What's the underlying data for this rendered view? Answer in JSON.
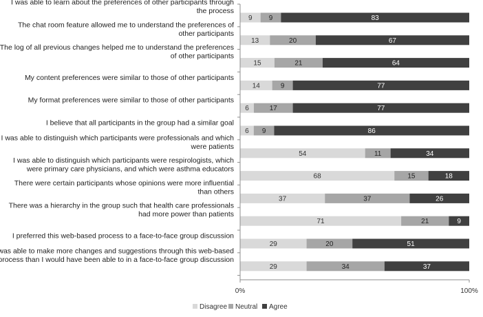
{
  "colors": {
    "disagree": "#d9d9d9",
    "neutral": "#a6a6a6",
    "agree": "#404040",
    "gridline": "#d0d0d0",
    "axis": "#8c8c8c"
  },
  "chart_data": {
    "type": "bar",
    "orientation": "horizontal",
    "stacked": true,
    "categories": [
      [
        "I was able to learn about the preferences of other participants through",
        "the process"
      ],
      [
        "The chat room feature allowed me to understand the preferences of",
        "other participants"
      ],
      [
        "The log of all previous changes helped me to understand the preferences",
        "of other participants"
      ],
      [
        "My content preferences were similar to those of other participants"
      ],
      [
        "My format preferences were similar to those of other participants"
      ],
      [
        "I believe that all participants in the group had a similar goal"
      ],
      [
        "I was able to distinguish which participants were professionals and which",
        "were patients"
      ],
      [
        "I was able to distinguish which participants were respirologists, which",
        "were primary care physicians, and which were asthma educators"
      ],
      [
        "There were certain participants whose opinions were more influential",
        "than others"
      ],
      [
        "There was a hierarchy in the group such that health care professionals",
        "had more power than patients"
      ],
      [
        "I preferred this web-based process to a face-to-face group discussion"
      ],
      [
        "I was able to make more changes and suggestions through this web-based",
        "process than I would have been able to in a face-to-face group discussion"
      ]
    ],
    "series": [
      {
        "name": "Disagree",
        "values": [
          9,
          13,
          15,
          14,
          6,
          6,
          54,
          68,
          37,
          71,
          29,
          29
        ]
      },
      {
        "name": "Neutral",
        "values": [
          9,
          20,
          21,
          9,
          17,
          9,
          11,
          15,
          37,
          21,
          20,
          34
        ]
      },
      {
        "name": "Agree",
        "values": [
          83,
          67,
          64,
          77,
          77,
          86,
          34,
          18,
          26,
          9,
          51,
          37
        ]
      }
    ],
    "x_ticks": [
      "0%",
      "100%"
    ],
    "xlim": [
      0,
      100
    ],
    "grid": false,
    "legend_position": "bottom"
  }
}
